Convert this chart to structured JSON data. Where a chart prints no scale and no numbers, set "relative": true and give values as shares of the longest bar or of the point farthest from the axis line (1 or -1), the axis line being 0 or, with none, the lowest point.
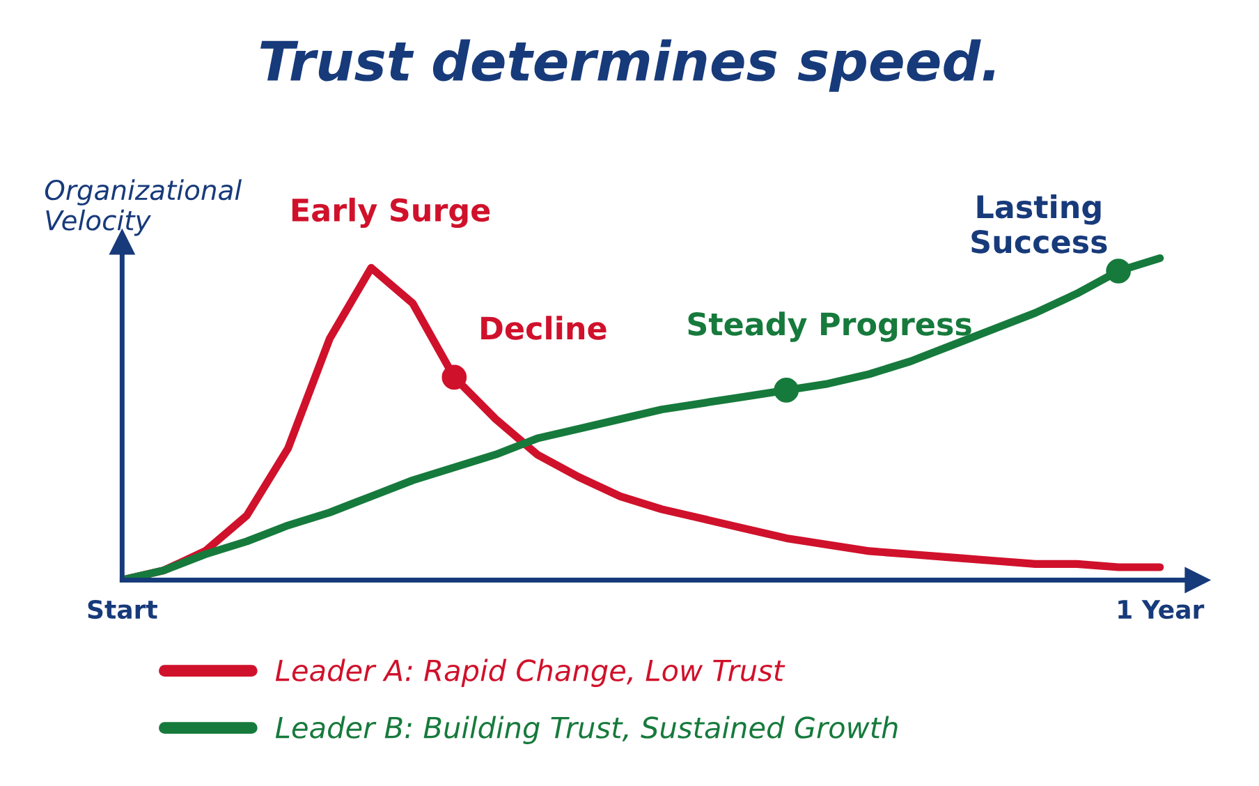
{
  "chart_data": {
    "type": "line",
    "title": "Trust determines speed.",
    "ylabel": "Organizational\nVelocity",
    "relative": true,
    "tick_labels": "x",
    "grid": false,
    "legend": "bottom left",
    "categories": [
      "Start",
      null,
      null,
      null,
      null,
      null,
      null,
      null,
      null,
      null,
      null,
      null,
      null,
      null,
      null,
      null,
      null,
      null,
      null,
      null,
      null,
      null,
      null,
      null,
      null,
      "1 Year"
    ],
    "series": [
      {
        "name": "Leader A: Rapid Change, Low Trust",
        "color": "#d0112b",
        "values": [
          0,
          0.03,
          0.09,
          0.2,
          0.41,
          0.75,
          0.97,
          0.86,
          0.63,
          0.5,
          0.39,
          0.32,
          0.26,
          0.22,
          0.19,
          0.16,
          0.13,
          0.11,
          0.09,
          0.08,
          0.07,
          0.06,
          0.05,
          0.05,
          0.04,
          0.04
        ]
      },
      {
        "name": "Leader B: Building Trust, Sustained Growth",
        "color": "#167a3c",
        "values": [
          0,
          0.03,
          0.08,
          0.12,
          0.17,
          0.21,
          0.26,
          0.31,
          0.35,
          0.39,
          0.44,
          0.47,
          0.5,
          0.53,
          0.55,
          0.57,
          0.59,
          0.61,
          0.64,
          0.68,
          0.73,
          0.78,
          0.83,
          0.89,
          0.96,
          1.0
        ]
      },
      {
        "type": "scatter",
        "color": "#d0112b",
        "values": [
          null,
          null,
          null,
          null,
          null,
          null,
          null,
          null,
          0.63,
          null,
          null,
          null,
          null,
          null,
          null,
          null,
          null,
          null,
          null,
          null,
          null,
          null,
          null,
          null,
          null,
          null
        ]
      },
      {
        "type": "scatter",
        "color": "#167a3c",
        "values": [
          null,
          null,
          null,
          null,
          null,
          null,
          null,
          null,
          null,
          null,
          null,
          null,
          null,
          null,
          null,
          null,
          0.59,
          null,
          null,
          null,
          null,
          null,
          null,
          null,
          0.96,
          null
        ]
      }
    ],
    "annotations": [
      "Early Surge",
      "Decline",
      "Steady Progress",
      "Lasting\nSuccess"
    ]
  }
}
